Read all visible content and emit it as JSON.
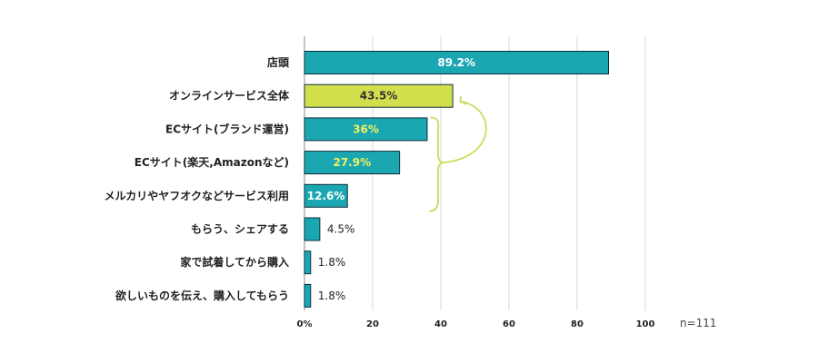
{
  "chart_data": {
    "type": "bar",
    "orientation": "horizontal",
    "categories": [
      "店頭",
      "オンラインサービス全体",
      "ECサイト(ブランド運営)",
      "ECサイト(楽天,Amazonなど)",
      "メルカリやヤフオクなどサービス利用",
      "もらう、シェアする",
      "家で試着してから購入",
      "欲しいものを伝え、購入してもらう"
    ],
    "values": [
      89.2,
      43.5,
      36,
      27.9,
      12.6,
      4.5,
      1.8,
      1.8
    ],
    "value_labels": [
      "89.2%",
      "43.5%",
      "36%",
      "27.9%",
      "12.6%",
      "4.5%",
      "1.8%",
      "1.8%"
    ],
    "xlim": [
      0,
      100
    ],
    "xticks": [
      0,
      20,
      40,
      60,
      80,
      100
    ],
    "xtick_labels": [
      "0%",
      "20",
      "40",
      "60",
      "80",
      "100"
    ],
    "sample_note": "n=111",
    "grid": true,
    "highlight_index": 1,
    "bracket_range": [
      2,
      4
    ],
    "colors": {
      "bar": "#1aa7b2",
      "bar_stroke": "#0e2f3a",
      "highlight": "#d3e04e",
      "label_on_bar": "#ffffff",
      "label_on_bar_alt": "#f2f060",
      "label_on_highlight": "#333333",
      "bracket": "#c6d94a",
      "grid": "#d9d9d9",
      "axis": "#888888"
    }
  }
}
